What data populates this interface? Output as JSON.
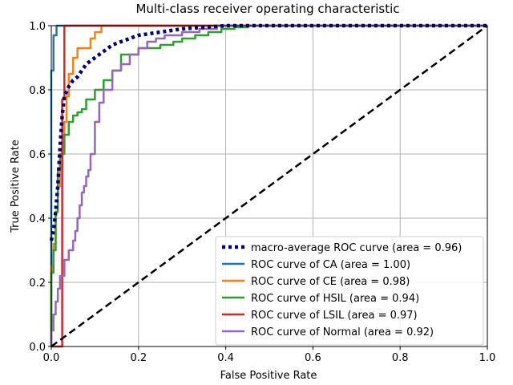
{
  "chart_data": {
    "type": "line",
    "title": "Multi-class receiver operating characteristic",
    "xlabel": "False Positive Rate",
    "ylabel": "True Positive Rate",
    "xlim": [
      0.0,
      1.0
    ],
    "ylim": [
      0.0,
      1.0
    ],
    "xticks": [
      "0.0",
      "0.2",
      "0.4",
      "0.6",
      "0.8",
      "1.0"
    ],
    "yticks": [
      "0.0",
      "0.2",
      "0.4",
      "0.6",
      "0.8",
      "1.0"
    ],
    "grid": true,
    "legend_position": "lower-right",
    "series": [
      {
        "name": "macro-average ROC curve (area = 0.96)",
        "color": "#000080",
        "style": "dotted",
        "x": [
          0.0,
          0.003,
          0.006,
          0.01,
          0.015,
          0.02,
          0.025,
          0.03,
          0.04,
          0.05,
          0.06,
          0.08,
          0.1,
          0.12,
          0.14,
          0.16,
          0.18,
          0.2,
          0.25,
          0.3,
          0.35,
          0.4,
          0.5,
          0.6,
          0.7,
          0.8,
          0.9,
          1.0
        ],
        "y": [
          0.33,
          0.35,
          0.37,
          0.42,
          0.5,
          0.62,
          0.72,
          0.78,
          0.81,
          0.83,
          0.84,
          0.88,
          0.9,
          0.92,
          0.94,
          0.95,
          0.96,
          0.97,
          0.98,
          0.99,
          0.995,
          1.0,
          1.0,
          1.0,
          1.0,
          1.0,
          1.0,
          1.0
        ]
      },
      {
        "name": "ROC curve of CA (area = 1.00)",
        "color": "#1f77b4",
        "style": "solid",
        "x": [
          0.0,
          0.0,
          0.005,
          0.005,
          0.012,
          0.012,
          1.0
        ],
        "y": [
          0.0,
          0.86,
          0.86,
          0.97,
          0.97,
          1.0,
          1.0
        ]
      },
      {
        "name": "ROC curve of CE (area = 0.98)",
        "color": "#ff7f0e",
        "style": "solid",
        "x": [
          0.0,
          0.0,
          0.005,
          0.005,
          0.01,
          0.01,
          0.015,
          0.015,
          0.02,
          0.02,
          0.025,
          0.025,
          0.03,
          0.03,
          0.035,
          0.035,
          0.04,
          0.04,
          0.05,
          0.05,
          0.06,
          0.06,
          0.09,
          0.09,
          0.1,
          0.1,
          0.115,
          0.115,
          1.0
        ],
        "y": [
          0.0,
          0.25,
          0.25,
          0.32,
          0.32,
          0.42,
          0.42,
          0.5,
          0.5,
          0.56,
          0.56,
          0.62,
          0.62,
          0.7,
          0.7,
          0.78,
          0.78,
          0.85,
          0.85,
          0.9,
          0.9,
          0.93,
          0.93,
          0.96,
          0.96,
          0.98,
          0.98,
          1.0,
          1.0
        ]
      },
      {
        "name": "ROC curve of HSIL (area = 0.94)",
        "color": "#2ca02c",
        "style": "solid",
        "x": [
          0.0,
          0.0,
          0.005,
          0.005,
          0.01,
          0.01,
          0.015,
          0.015,
          0.02,
          0.02,
          0.03,
          0.03,
          0.04,
          0.04,
          0.05,
          0.05,
          0.06,
          0.06,
          0.07,
          0.07,
          0.08,
          0.08,
          0.1,
          0.1,
          0.12,
          0.12,
          0.14,
          0.14,
          0.16,
          0.16,
          0.2,
          0.2,
          0.25,
          0.25,
          0.28,
          0.28,
          0.3,
          0.3,
          0.33,
          0.33,
          0.36,
          0.36,
          0.39,
          0.39,
          0.42,
          0.42,
          0.45,
          0.45,
          0.5,
          0.5,
          1.0
        ],
        "y": [
          0.0,
          0.23,
          0.23,
          0.3,
          0.3,
          0.42,
          0.42,
          0.55,
          0.55,
          0.6,
          0.6,
          0.66,
          0.66,
          0.7,
          0.7,
          0.72,
          0.72,
          0.73,
          0.73,
          0.74,
          0.74,
          0.77,
          0.77,
          0.8,
          0.8,
          0.83,
          0.83,
          0.86,
          0.86,
          0.91,
          0.91,
          0.93,
          0.93,
          0.94,
          0.94,
          0.95,
          0.95,
          0.96,
          0.96,
          0.97,
          0.97,
          0.98,
          0.98,
          0.99,
          0.99,
          0.995,
          0.995,
          1.0,
          1.0,
          1.0,
          1.0
        ]
      },
      {
        "name": "ROC curve of LSIL (area = 0.97)",
        "color": "#d62728",
        "style": "solid",
        "x": [
          0.0,
          0.025,
          0.025,
          0.03,
          0.03,
          1.0
        ],
        "y": [
          0.0,
          0.0,
          0.77,
          0.77,
          1.0,
          1.0
        ]
      },
      {
        "name": "ROC curve of Normal (area = 0.92)",
        "color": "#9467bd",
        "style": "solid",
        "x": [
          0.0,
          0.0,
          0.005,
          0.005,
          0.01,
          0.01,
          0.015,
          0.015,
          0.02,
          0.02,
          0.03,
          0.03,
          0.04,
          0.04,
          0.05,
          0.05,
          0.055,
          0.055,
          0.06,
          0.06,
          0.065,
          0.065,
          0.07,
          0.07,
          0.075,
          0.075,
          0.08,
          0.08,
          0.085,
          0.085,
          0.09,
          0.09,
          0.1,
          0.1,
          0.11,
          0.11,
          0.12,
          0.12,
          0.14,
          0.14,
          0.16,
          0.16,
          0.18,
          0.18,
          0.2,
          0.2,
          0.22,
          0.22,
          0.24,
          0.24,
          0.26,
          0.26,
          0.3,
          0.3,
          0.34,
          0.34,
          0.38,
          0.38,
          1.0
        ],
        "y": [
          0.0,
          0.05,
          0.05,
          0.1,
          0.1,
          0.14,
          0.14,
          0.18,
          0.18,
          0.22,
          0.22,
          0.27,
          0.27,
          0.3,
          0.3,
          0.33,
          0.33,
          0.36,
          0.36,
          0.4,
          0.4,
          0.44,
          0.44,
          0.48,
          0.48,
          0.5,
          0.5,
          0.53,
          0.53,
          0.55,
          0.55,
          0.6,
          0.6,
          0.7,
          0.7,
          0.76,
          0.76,
          0.8,
          0.8,
          0.86,
          0.86,
          0.88,
          0.88,
          0.91,
          0.91,
          0.93,
          0.93,
          0.95,
          0.95,
          0.96,
          0.96,
          0.97,
          0.97,
          0.98,
          0.98,
          0.99,
          0.99,
          1.0,
          1.0
        ]
      },
      {
        "name": "",
        "color": "#000000",
        "style": "dashed",
        "x": [
          0.0,
          1.0
        ],
        "y": [
          0.0,
          1.0
        ]
      }
    ]
  }
}
